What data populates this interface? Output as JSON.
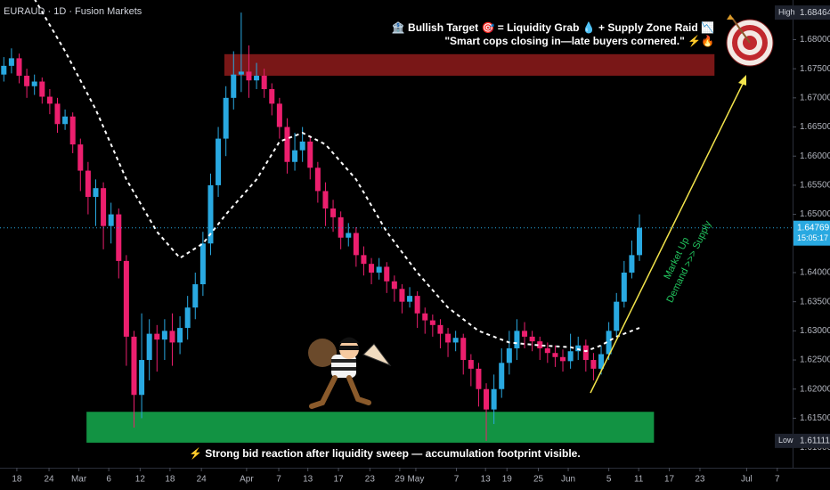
{
  "chart_data": {
    "type": "candlestick",
    "symbol_label": "EURAUD · 1D · Fusion Markets",
    "annotation_top": "🏦 Bullish Target 🎯 = Liquidity Grab 💧 + Supply Zone Raid 📉",
    "annotation_top_2": "\"Smart cops closing in—late buyers cornered.\" ⚡🔥",
    "annotation_bottom": "⚡ Strong bid reaction after liquidity sweep — accumulation footprint visible.",
    "arrow_labels": [
      "Market Up",
      "Demand >>> Supply"
    ],
    "up_color": "#29a9e1",
    "down_color": "#ec1f6e",
    "open": [
      1.674,
      1.6755,
      1.6768,
      1.6738,
      1.672,
      1.6728,
      1.6702,
      1.669,
      1.6655,
      1.6668,
      1.662,
      1.6575,
      1.653,
      1.6545,
      1.648,
      1.65,
      1.642,
      1.629,
      1.619,
      1.625,
      1.6295,
      1.6285,
      1.63,
      1.628,
      1.6305,
      1.634,
      1.638,
      1.645,
      1.655,
      1.663,
      1.67,
      1.674,
      1.6745,
      1.673,
      1.6738,
      1.6715,
      1.669,
      1.665,
      1.659,
      1.661,
      1.6625,
      1.658,
      1.654,
      1.651,
      1.6495,
      1.646,
      1.6468,
      1.643,
      1.6415,
      1.64,
      1.641,
      1.6385,
      1.6372,
      1.635,
      1.636,
      1.633,
      1.6318,
      1.631,
      1.6295,
      1.628,
      1.6288,
      1.625,
      1.6235,
      1.62,
      1.6165,
      1.62,
      1.6245,
      1.627,
      1.63,
      1.629,
      1.6282,
      1.627,
      1.6262,
      1.6255,
      1.6248,
      1.6265,
      1.6275,
      1.625,
      1.6235,
      1.626,
      1.63,
      1.635,
      1.64,
      1.643
    ],
    "high": [
      1.677,
      1.6785,
      1.6776,
      1.675,
      1.674,
      1.6735,
      1.6715,
      1.67,
      1.668,
      1.6675,
      1.663,
      1.659,
      1.656,
      1.6555,
      1.652,
      1.651,
      1.643,
      1.63,
      1.633,
      1.632,
      1.631,
      1.632,
      1.633,
      1.6325,
      1.636,
      1.64,
      1.647,
      1.657,
      1.665,
      1.672,
      1.678,
      1.68464,
      1.679,
      1.676,
      1.675,
      1.6725,
      1.67,
      1.6665,
      1.664,
      1.665,
      1.6635,
      1.659,
      1.6555,
      1.6525,
      1.6505,
      1.6485,
      1.6478,
      1.6445,
      1.6425,
      1.6425,
      1.6418,
      1.6395,
      1.638,
      1.6375,
      1.6368,
      1.634,
      1.6328,
      1.632,
      1.6305,
      1.63,
      1.6295,
      1.626,
      1.6245,
      1.621,
      1.6225,
      1.627,
      1.63,
      1.632,
      1.6315,
      1.63,
      1.629,
      1.628,
      1.6275,
      1.6268,
      1.6295,
      1.629,
      1.6285,
      1.6262,
      1.6275,
      1.6315,
      1.6365,
      1.642,
      1.6455,
      1.65
    ],
    "low": [
      1.6728,
      1.6742,
      1.6725,
      1.67,
      1.6705,
      1.669,
      1.6672,
      1.664,
      1.6645,
      1.6605,
      1.654,
      1.65,
      1.648,
      1.644,
      1.645,
      1.639,
      1.624,
      1.6134,
      1.615,
      1.6215,
      1.623,
      1.625,
      1.624,
      1.626,
      1.6285,
      1.632,
      1.636,
      1.643,
      1.653,
      1.66,
      1.668,
      1.671,
      1.67,
      1.6715,
      1.67,
      1.667,
      1.663,
      1.657,
      1.6575,
      1.659,
      1.656,
      1.652,
      1.648,
      1.647,
      1.644,
      1.6445,
      1.641,
      1.6395,
      1.638,
      1.6388,
      1.6365,
      1.635,
      1.633,
      1.634,
      1.6305,
      1.6295,
      1.629,
      1.627,
      1.6255,
      1.6265,
      1.6225,
      1.6205,
      1.617,
      1.61111,
      1.614,
      1.6185,
      1.6225,
      1.625,
      1.627,
      1.6265,
      1.625,
      1.6245,
      1.6238,
      1.623,
      1.6235,
      1.625,
      1.623,
      1.6215,
      1.6225,
      1.625,
      1.629,
      1.634,
      1.639,
      1.642
    ],
    "close": [
      1.6755,
      1.6768,
      1.6738,
      1.672,
      1.6728,
      1.6702,
      1.669,
      1.6655,
      1.6668,
      1.662,
      1.6575,
      1.653,
      1.6545,
      1.648,
      1.65,
      1.642,
      1.629,
      1.619,
      1.625,
      1.6295,
      1.6285,
      1.63,
      1.628,
      1.6305,
      1.634,
      1.638,
      1.645,
      1.655,
      1.663,
      1.67,
      1.674,
      1.6745,
      1.673,
      1.6738,
      1.6715,
      1.669,
      1.665,
      1.659,
      1.661,
      1.6625,
      1.658,
      1.654,
      1.651,
      1.6495,
      1.646,
      1.6468,
      1.643,
      1.6415,
      1.64,
      1.641,
      1.6385,
      1.6372,
      1.635,
      1.636,
      1.633,
      1.6318,
      1.631,
      1.6295,
      1.628,
      1.6288,
      1.625,
      1.6235,
      1.62,
      1.6165,
      1.62,
      1.6245,
      1.627,
      1.63,
      1.629,
      1.6282,
      1.627,
      1.6262,
      1.6255,
      1.6248,
      1.6265,
      1.6275,
      1.625,
      1.6235,
      1.626,
      1.63,
      1.635,
      1.64,
      1.643,
      1.64769
    ],
    "moving_average": {
      "color": "#ffffff",
      "x": [
        4,
        8,
        12,
        16,
        20,
        23,
        26,
        29,
        33,
        36,
        39,
        42,
        46,
        50,
        54,
        58,
        62,
        66,
        70,
        74,
        76,
        78,
        80,
        83
      ],
      "values": [
        1.687,
        1.678,
        1.668,
        1.656,
        1.647,
        1.6425,
        1.645,
        1.65,
        1.656,
        1.6625,
        1.664,
        1.662,
        1.656,
        1.647,
        1.64,
        1.634,
        1.63,
        1.628,
        1.6275,
        1.6272,
        1.6265,
        1.6275,
        1.629,
        1.6305
      ]
    },
    "supply_zone": {
      "color": "#8e1b1b",
      "x": [
        28.8,
        92.8
      ],
      "y": [
        1.6738,
        1.6775
      ]
    },
    "demand_zone": {
      "color": "#14a34a",
      "x": [
        10.8,
        84.9
      ],
      "y": [
        1.6108,
        1.6161
      ]
    },
    "xlim": [
      -0.5,
      103
    ],
    "ylim": [
      1.6065,
      1.6868
    ],
    "xticks": [
      {
        "value": 1.7,
        "label": "18"
      },
      {
        "value": 5.9,
        "label": "24"
      },
      {
        "value": 9.8,
        "label": "Mar"
      },
      {
        "value": 13.7,
        "label": "6"
      },
      {
        "value": 17.8,
        "label": "12"
      },
      {
        "value": 21.7,
        "label": "18"
      },
      {
        "value": 25.8,
        "label": "24"
      },
      {
        "value": 31.7,
        "label": "Apr"
      },
      {
        "value": 35.9,
        "label": "7"
      },
      {
        "value": 39.7,
        "label": "13"
      },
      {
        "value": 43.7,
        "label": "17"
      },
      {
        "value": 47.8,
        "label": "23"
      },
      {
        "value": 51.7,
        "label": "29"
      },
      {
        "value": 53.8,
        "label": "May"
      },
      {
        "value": 59.1,
        "label": "7"
      },
      {
        "value": 62.9,
        "label": "13"
      },
      {
        "value": 65.7,
        "label": "19"
      },
      {
        "value": 69.8,
        "label": "25"
      },
      {
        "value": 73.7,
        "label": "Jun"
      },
      {
        "value": 79,
        "label": "5"
      },
      {
        "value": 82.9,
        "label": "11"
      },
      {
        "value": 86.9,
        "label": "17"
      },
      {
        "value": 90.9,
        "label": "23"
      },
      {
        "value": 97,
        "label": "Jul"
      },
      {
        "value": 101,
        "label": "7"
      }
    ],
    "yticks": [
      {
        "value": 1.68,
        "label": "1.68000"
      },
      {
        "value": 1.675,
        "label": "1.67500"
      },
      {
        "value": 1.67,
        "label": "1.67000"
      },
      {
        "value": 1.665,
        "label": "1.66500"
      },
      {
        "value": 1.66,
        "label": "1.66000"
      },
      {
        "value": 1.655,
        "label": "1.65500"
      },
      {
        "value": 1.65,
        "label": "1.65000"
      },
      {
        "value": 1.64,
        "label": "1.64000"
      },
      {
        "value": 1.635,
        "label": "1.63500"
      },
      {
        "value": 1.63,
        "label": "1.63000"
      },
      {
        "value": 1.625,
        "label": "1.62500"
      },
      {
        "value": 1.62,
        "label": "1.62000"
      },
      {
        "value": 1.615,
        "label": "1.61500"
      },
      {
        "value": 1.61,
        "label": "1.61000"
      }
    ],
    "price_labels": [
      {
        "label": "High",
        "value": 1.68464
      },
      {
        "label": "Low",
        "value": 1.61111
      }
    ],
    "last_price": {
      "value": 1.64769,
      "countdown": "15:05:17",
      "color": "#29a9e1"
    }
  }
}
